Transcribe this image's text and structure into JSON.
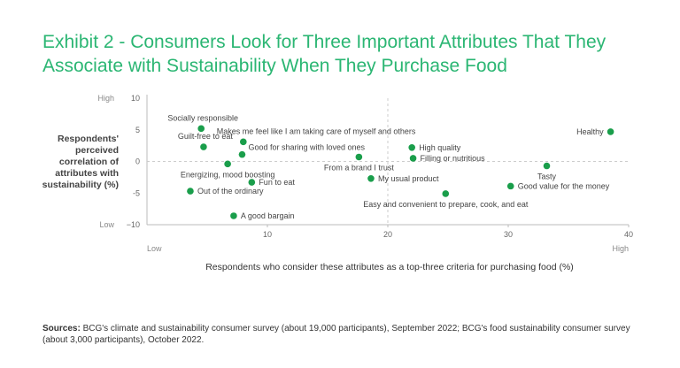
{
  "chart_data": {
    "type": "scatter",
    "title": "Exhibit 2 - Consumers Look for Three Important Attributes That They Associate with Sustainability When They Purchase Food",
    "xlabel": "Respondents who consider these attributes as a top-three criteria for purchasing food (%)",
    "ylabel": "Respondents' perceived correlation of attributes with sustainability (%)",
    "xlim": [
      0,
      40
    ],
    "ylim": [
      -10,
      10
    ],
    "xticks": [
      "10",
      "20",
      "30",
      "40"
    ],
    "yticks": [
      "10",
      "5",
      "0",
      "-5",
      "−10"
    ],
    "x_low_label": "Low",
    "x_high_label": "High",
    "y_low_label": "Low",
    "y_high_label": "High",
    "reference_lines": {
      "x": 20,
      "y": 0
    },
    "point_color": "#1a9e4b",
    "points": [
      {
        "label": "Socially responsible",
        "x": 4.5,
        "y": 5.2,
        "label_pos": "above"
      },
      {
        "label": "Guilt-free to eat",
        "x": 4.7,
        "y": 2.3,
        "label_pos": "above"
      },
      {
        "label": "Makes me feel like I am taking care of myself and others",
        "x": 8.0,
        "y": 3.1,
        "label_pos": "above-right"
      },
      {
        "label": "Good for sharing with loved ones",
        "x": 7.9,
        "y": 1.1,
        "label_pos": "right-above"
      },
      {
        "label": "Energizing, mood boosting",
        "x": 6.7,
        "y": -0.4,
        "label_pos": "below"
      },
      {
        "label": "Fun to eat",
        "x": 8.7,
        "y": -3.3,
        "label_pos": "right"
      },
      {
        "label": "Out of the ordinary",
        "x": 3.6,
        "y": -4.7,
        "label_pos": "right"
      },
      {
        "label": "A good bargain",
        "x": 7.2,
        "y": -8.6,
        "label_pos": "right"
      },
      {
        "label": "From a brand I trust",
        "x": 17.6,
        "y": 0.7,
        "label_pos": "below"
      },
      {
        "label": "My usual product",
        "x": 18.6,
        "y": -2.7,
        "label_pos": "right"
      },
      {
        "label": "High quality",
        "x": 22.0,
        "y": 2.2,
        "label_pos": "right"
      },
      {
        "label": "Filling or nutritious",
        "x": 22.1,
        "y": 0.5,
        "label_pos": "right"
      },
      {
        "label": "Easy and convenient to prepare, cook, and eat",
        "x": 24.8,
        "y": -5.1,
        "label_pos": "below"
      },
      {
        "label": "Healthy",
        "x": 38.5,
        "y": 4.7,
        "label_pos": "left"
      },
      {
        "label": "Tasty",
        "x": 33.2,
        "y": -0.7,
        "label_pos": "below"
      },
      {
        "label": "Good value for the money",
        "x": 30.2,
        "y": -3.9,
        "label_pos": "right"
      }
    ]
  },
  "sources": {
    "heading": "Sources:",
    "text": " BCG's climate and sustainability consumer survey (about 19,000 participants), September 2022; BCG's food sustainability consumer survey (about 3,000 participants), October 2022."
  }
}
